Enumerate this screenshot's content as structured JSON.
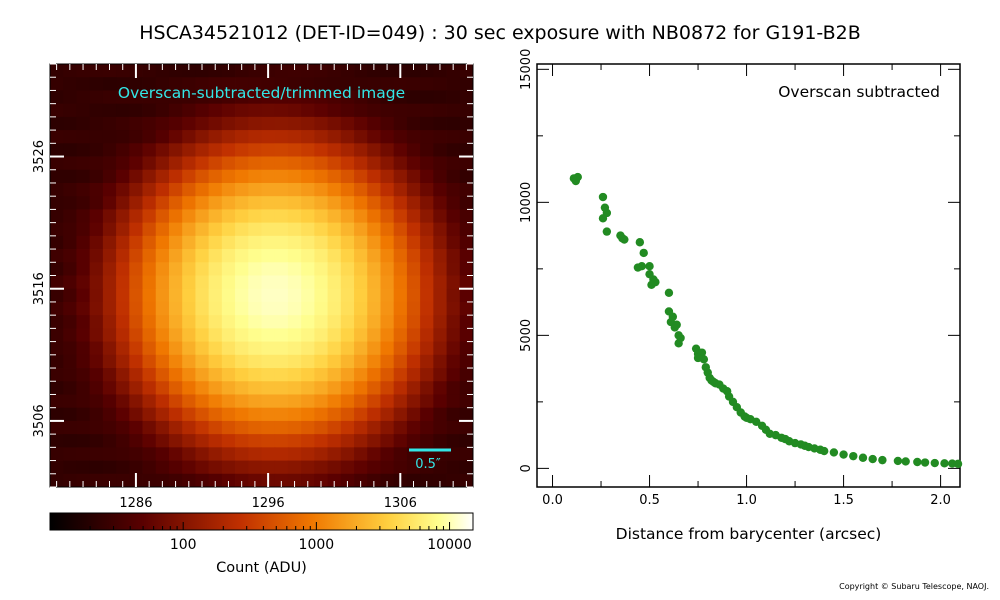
{
  "page_title": "HSCA34521012 (DET-ID=049) :  30 sec exposure with NB0872 for G191-B2B",
  "copyright": "Copyright © Subaru Telescope, NAOJ.",
  "colors": {
    "marker": "#228b22",
    "annotation": "#33e6e6",
    "frame": "#000000"
  },
  "chart_data": [
    {
      "type": "heatmap",
      "title": "Overscan-subtracted/trimmed image",
      "xticks": [
        "1286",
        "1296",
        "1306"
      ],
      "xtick_values": [
        1286,
        1296,
        1306
      ],
      "yticks": [
        "3526",
        "3516",
        "3506"
      ],
      "ytick_values": [
        3526,
        3516,
        3506
      ],
      "xlim": [
        1279.5,
        1311.5
      ],
      "ylim": [
        3501,
        3533
      ],
      "center": [
        1296.5,
        3515.5
      ],
      "peak_count": 11000,
      "scale_bar_label": "0.5″",
      "colorbar": {
        "label": "Count (ADU)",
        "ticks": [
          "100",
          "1000",
          "10000"
        ],
        "tick_values": [
          100,
          1000,
          10000
        ],
        "range": [
          10,
          15000
        ],
        "scale": "log"
      }
    },
    {
      "type": "scatter",
      "annotation": "Overscan subtracted",
      "xlabel": "Distance from barycenter (arcsec)",
      "ylabel": "",
      "xlim": [
        -0.08,
        2.1
      ],
      "ylim": [
        -700,
        15200
      ],
      "xticks": [
        "0.0",
        "0.5",
        "1.0",
        "1.5",
        "2.0"
      ],
      "xtick_values": [
        0,
        0.5,
        1.0,
        1.5,
        2.0
      ],
      "yticks": [
        "0",
        "5000",
        "10000",
        "15000"
      ],
      "ytick_values": [
        0,
        5000,
        10000,
        15000
      ],
      "grid": false,
      "series": [
        {
          "x": [
            0.11,
            0.12,
            0.13,
            0.26,
            0.27,
            0.28,
            0.26,
            0.28,
            0.35,
            0.37,
            0.36,
            0.45,
            0.46,
            0.44,
            0.47,
            0.5,
            0.52,
            0.51,
            0.53,
            0.5,
            0.6,
            0.6,
            0.62,
            0.61,
            0.63,
            0.65,
            0.66,
            0.64,
            0.65,
            0.74,
            0.75,
            0.76,
            0.77,
            0.75,
            0.78,
            0.79,
            0.8,
            0.81,
            0.82,
            0.83,
            0.84,
            0.86,
            0.88,
            0.9,
            0.91,
            0.93,
            0.95,
            0.97,
            0.99,
            1.0,
            1.02,
            1.05,
            1.08,
            1.1,
            1.12,
            1.15,
            1.18,
            1.2,
            1.22,
            1.25,
            1.28,
            1.3,
            1.32,
            1.35,
            1.38,
            1.4,
            1.45,
            1.5,
            1.55,
            1.6,
            1.65,
            1.7,
            1.78,
            1.82,
            1.88,
            1.92,
            1.97,
            2.02,
            2.06,
            2.09
          ],
          "y": [
            10900,
            10800,
            10950,
            10200,
            9800,
            9600,
            9400,
            8900,
            8750,
            8600,
            8650,
            8500,
            7600,
            7550,
            8100,
            7600,
            7100,
            6900,
            7000,
            7300,
            6600,
            5900,
            5700,
            5500,
            5300,
            5000,
            4900,
            5400,
            4700,
            4500,
            4300,
            4200,
            4350,
            4150,
            4100,
            3800,
            3600,
            3400,
            3300,
            3250,
            3200,
            3150,
            3000,
            2900,
            2700,
            2500,
            2300,
            2100,
            1950,
            1900,
            1850,
            1750,
            1600,
            1450,
            1300,
            1250,
            1150,
            1100,
            1020,
            950,
            900,
            850,
            800,
            750,
            700,
            650,
            600,
            520,
            460,
            400,
            350,
            310,
            280,
            260,
            240,
            220,
            200,
            190,
            180,
            170
          ]
        }
      ]
    }
  ]
}
